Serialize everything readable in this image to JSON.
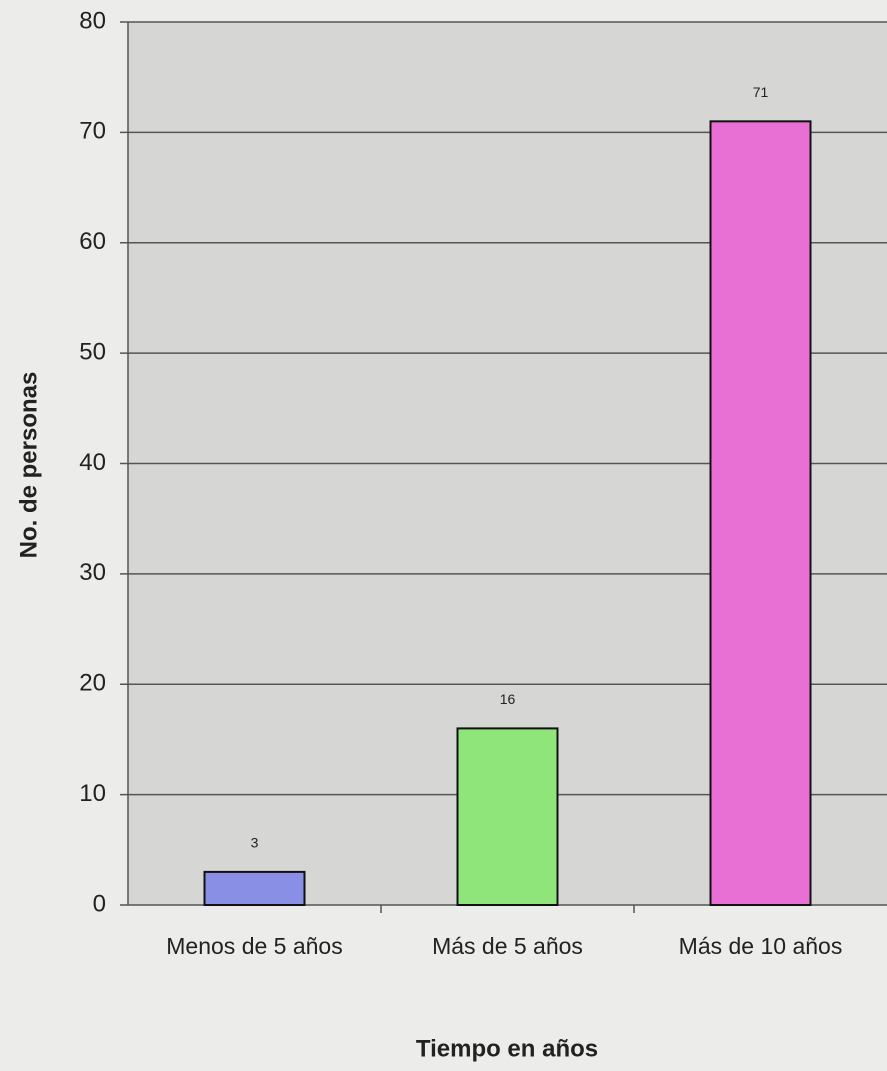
{
  "chart_data": {
    "type": "bar",
    "x_label": "Tiempo en años",
    "y_label": "No. de personas",
    "categories": [
      "Menos de 5 años",
      "Más de 5 años",
      "Más de 10 años"
    ],
    "values": [
      3,
      16,
      71
    ],
    "colors": [
      "#8a8fe6",
      "#8fe47a",
      "#e86fd4"
    ],
    "ylim": [
      0,
      80
    ],
    "yticks": [
      0,
      10,
      20,
      30,
      40,
      50,
      60,
      70,
      80
    ],
    "grid": true
  }
}
